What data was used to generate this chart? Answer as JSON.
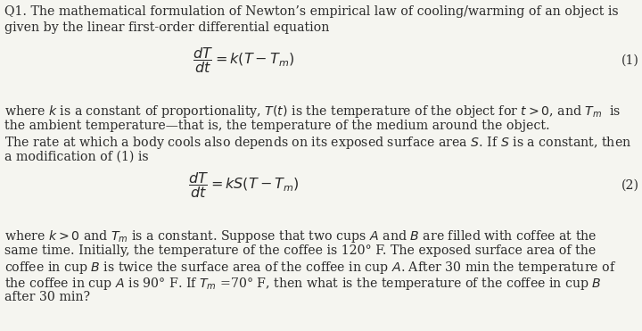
{
  "background_color": "#f5f5f0",
  "text_color": "#2a2a2a",
  "figsize": [
    7.2,
    3.71
  ],
  "dpi": 100,
  "font_size": 10.2,
  "eq_font_size": 11.5,
  "line1": "Q1. The mathematical formulation of Newton’s empirical law of cooling/warming of an object is",
  "line2": "given by the linear first-order differential equation",
  "eq1_label": "(1)",
  "eq2_label": "(2)",
  "para1_line1": "where $k$ is a constant of proportionality, $T(t)$ is the temperature of the object for $t > 0$, and $T_m$  is",
  "para1_line2": "the ambient temperature—that is, the temperature of the medium around the object.",
  "para1_line3": "The rate at which a body cools also depends on its exposed surface area $S$. If $S$ is a constant, then",
  "para1_line4": "a modification of (1) is",
  "para2_line1": "where $k > 0$ and $T_m$ is a constant. Suppose that two cups $A$ and $B$ are filled with coffee at the",
  "para2_line2": "same time. Initially, the temperature of the coffee is 120° F. The exposed surface area of the",
  "para2_line3": "coffee in cup $B$ is twice the surface area of the coffee in cup $A$. After 30 min the temperature of",
  "para2_line4": "the coffee in cup $A$ is 90° F. If $T_m$ =70° F, then what is the temperature of the coffee in cup $B$",
  "para2_line5": "after 30 min?",
  "eq1": "$\\dfrac{dT}{dt} = k(T - T_m)$",
  "eq2": "$\\dfrac{dT}{dt} = kS(T - T_m)$"
}
